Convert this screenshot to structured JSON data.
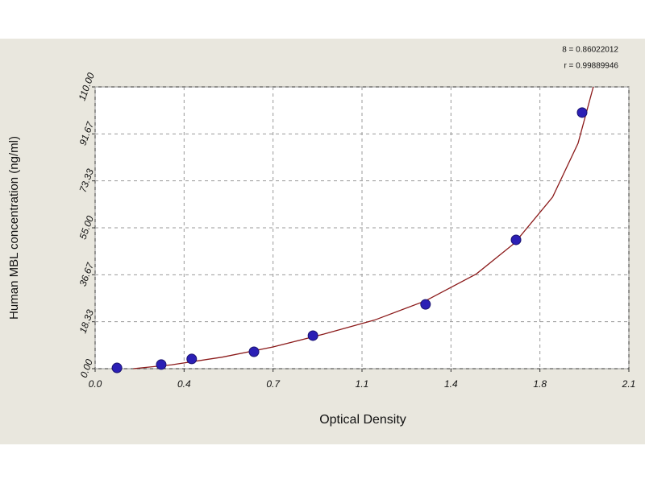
{
  "chart_data": {
    "type": "scatter",
    "x_label": "Optical Density",
    "y_label": "Human MBL concentration (ng/ml)",
    "annotations": [
      "8 = 0.86022012",
      "r = 0.99889946"
    ],
    "xlim": [
      0,
      2.1
    ],
    "ylim": [
      0,
      110
    ],
    "xticks": [
      {
        "value": 0,
        "label": "0.0"
      },
      {
        "value": 0.35,
        "label": "0.4"
      },
      0.7,
      {
        "value": 1.05,
        "label": "1.1"
      },
      1.4,
      {
        "value": 1.75,
        "label": "1.8"
      },
      2.1
    ],
    "yticks": [
      {
        "value": 0,
        "label": "0.00"
      },
      18.33,
      36.67,
      {
        "value": 55,
        "label": "55.00"
      },
      73.33,
      91.67,
      {
        "value": 110,
        "label": "110.00"
      }
    ],
    "grid": true,
    "series": [
      {
        "color": "#2b1fb5",
        "x": [
          0.086,
          0.26,
          0.38,
          0.625,
          0.857,
          1.3,
          1.656,
          1.916
        ],
        "values": [
          0.3,
          1.6,
          3.8,
          6.6,
          12.9,
          25.1,
          50.3,
          100
        ]
      },
      {
        "color": "#8b1a1a",
        "x": [
          0.15,
          0.3,
          0.5,
          0.7,
          0.9,
          1.1,
          1.3,
          1.5,
          1.65,
          1.8,
          1.9,
          1.96
        ],
        "values": [
          0,
          1.5,
          4.5,
          8.5,
          13.5,
          19,
          26.5,
          37,
          49,
          67,
          88,
          110
        ]
      }
    ]
  }
}
